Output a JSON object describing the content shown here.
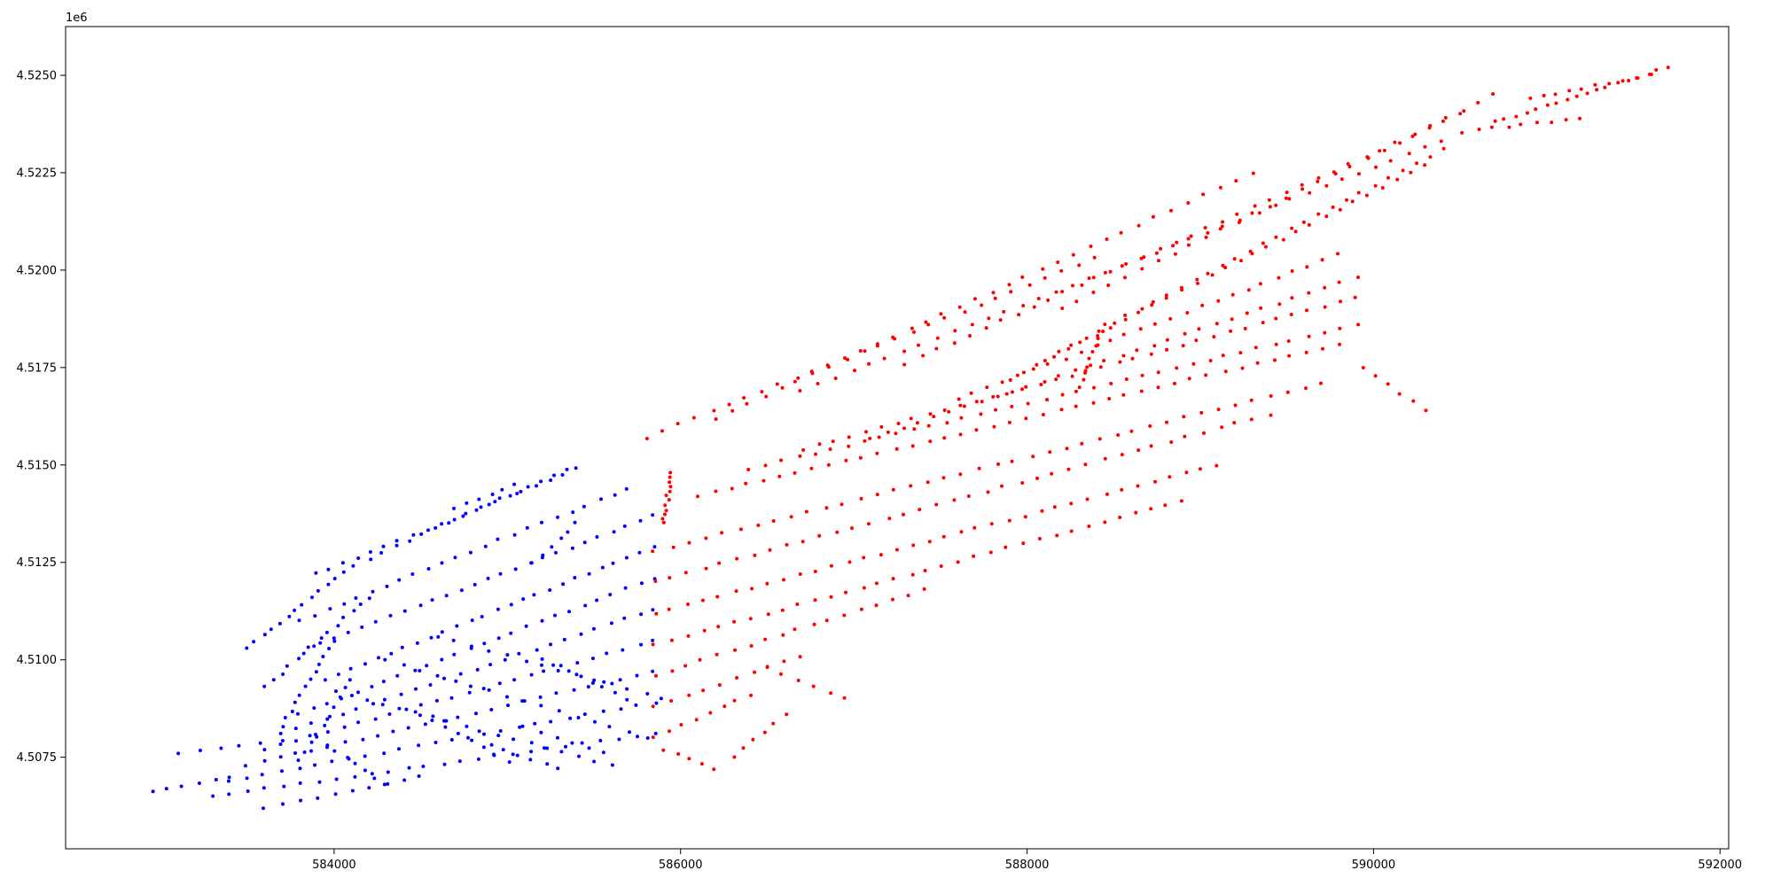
{
  "chart_data": {
    "type": "scatter",
    "title": "",
    "xlabel": "",
    "ylabel": "",
    "y_offset_label": "1e6",
    "xlim": [
      582450,
      592050
    ],
    "ylim": [
      4505150,
      4526250
    ],
    "grid": false,
    "legend": null,
    "x_ticks": [
      {
        "value": 584000,
        "label": "584000"
      },
      {
        "value": 586000,
        "label": "586000"
      },
      {
        "value": 588000,
        "label": "588000"
      },
      {
        "value": 590000,
        "label": "590000"
      },
      {
        "value": 592000,
        "label": "592000"
      }
    ],
    "y_ticks": [
      {
        "value": 4507500,
        "label": "4.5075"
      },
      {
        "value": 4510000,
        "label": "4.5100"
      },
      {
        "value": 4512500,
        "label": "4.5125"
      },
      {
        "value": 4515000,
        "label": "4.5150"
      },
      {
        "value": 4517500,
        "label": "4.5175"
      },
      {
        "value": 4520000,
        "label": "4.5200"
      },
      {
        "value": 4522500,
        "label": "4.5225"
      },
      {
        "value": 4525000,
        "label": "4.5250"
      }
    ],
    "series": [
      {
        "color": "#0000ff",
        "marker_size": 2,
        "lines": [
          {
            "p0": [
              583300,
              4506500
            ],
            "p1": [
              585850,
              4508100
            ],
            "n": 26
          },
          {
            "p0": [
              583400,
              4506900
            ],
            "p1": [
              585850,
              4508900
            ],
            "n": 26
          },
          {
            "p0": [
              583500,
              4507300
            ],
            "p1": [
              585850,
              4509700
            ],
            "n": 26
          },
          {
            "p0": [
              583600,
              4507700
            ],
            "p1": [
              585850,
              4510500
            ],
            "n": 26
          },
          {
            "p0": [
              583700,
              4508100
            ],
            "p1": [
              585850,
              4511300
            ],
            "n": 26
          },
          {
            "p0": [
              583800,
              4508600
            ],
            "p1": [
              585850,
              4512100
            ],
            "n": 26
          },
          {
            "p0": [
              583950,
              4509500
            ],
            "p1": [
              585850,
              4512900
            ],
            "n": 26
          },
          {
            "p0": [
              583850,
              4510300
            ],
            "p1": [
              585850,
              4513700
            ],
            "n": 26
          },
          {
            "p0": [
              583800,
              4511000
            ],
            "p1": [
              585700,
              4514400
            ],
            "n": 24
          },
          {
            "p0": [
              583900,
              4512200
            ],
            "p1": [
              585400,
              4514900
            ],
            "n": 20
          },
          {
            "p0": [
              584200,
              4512600
            ],
            "p1": [
              585350,
              4514900
            ],
            "n": 16
          },
          {
            "p0": [
              584700,
              4513900
            ],
            "p1": [
              585050,
              4514500
            ],
            "n": 6
          },
          {
            "p0": [
              583500,
              4510300
            ],
            "p1": [
              584100,
              4512400
            ],
            "n": 14
          },
          {
            "p0": [
              583600,
              4509300
            ],
            "p1": [
              584200,
              4511600
            ],
            "n": 14
          },
          {
            "p0": [
              583700,
              4508300
            ],
            "p1": [
              584000,
              4510500
            ],
            "n": 12
          },
          {
            "p0": [
              583800,
              4507400
            ],
            "p1": [
              584100,
              4509500
            ],
            "n": 10
          },
          {
            "p0": [
              583100,
              4507600
            ],
            "p1": [
              583700,
              4507900
            ],
            "n": 6
          },
          {
            "p0": [
              582950,
              4506600
            ],
            "p1": [
              583400,
              4507000
            ],
            "n": 6
          },
          {
            "p0": [
              583600,
              4506200
            ],
            "p1": [
              584500,
              4507000
            ],
            "n": 10
          },
          {
            "p0": [
              584000,
              4509200
            ],
            "p1": [
              585600,
              4507300
            ],
            "n": 18
          },
          {
            "p0": [
              584300,
              4510000
            ],
            "p1": [
              585800,
              4508000
            ],
            "n": 16
          },
          {
            "p0": [
              584600,
              4510600
            ],
            "p1": [
              585900,
              4509000
            ],
            "n": 14
          },
          {
            "p0": [
              585150,
              4512500
            ],
            "p1": [
              585400,
              4513500
            ],
            "n": 6
          },
          {
            "p0": [
              584900,
              4507800
            ],
            "p1": [
              585300,
              4507200
            ],
            "n": 6
          },
          {
            "p0": [
              584500,
              4508600
            ],
            "p1": [
              585000,
              4507400
            ],
            "n": 8
          },
          {
            "p0": [
              583900,
              4508000
            ],
            "p1": [
              584300,
              4506800
            ],
            "n": 8
          },
          {
            "p0": [
              585100,
              4508300
            ],
            "p1": [
              585550,
              4507600
            ],
            "n": 6
          },
          {
            "p0": [
              585200,
              4510000
            ],
            "p1": [
              585700,
              4509000
            ],
            "n": 8
          }
        ]
      },
      {
        "color": "#ff0000",
        "marker_size": 2,
        "lines": [
          {
            "p0": [
              585850,
              4508000
            ],
            "p1": [
              586400,
              4509100
            ],
            "n": 8
          },
          {
            "p0": [
              585850,
              4508800
            ],
            "p1": [
              586700,
              4510100
            ],
            "n": 10
          },
          {
            "p0": [
              585850,
              4509600
            ],
            "p1": [
              587400,
              4511800
            ],
            "n": 18
          },
          {
            "p0": [
              585850,
              4510400
            ],
            "p1": [
              588900,
              4514100
            ],
            "n": 34
          },
          {
            "p0": [
              585850,
              4511200
            ],
            "p1": [
              589100,
              4515000
            ],
            "n": 36
          },
          {
            "p0": [
              585850,
              4512000
            ],
            "p1": [
              589400,
              4516300
            ],
            "n": 38
          },
          {
            "p0": [
              585850,
              4512800
            ],
            "p1": [
              589700,
              4517100
            ],
            "n": 40
          },
          {
            "p0": [
              586100,
              4514200
            ],
            "p1": [
              589800,
              4518100
            ],
            "n": 40
          },
          {
            "p0": [
              586400,
              4514900
            ],
            "p1": [
              589900,
              4518600
            ],
            "n": 38
          },
          {
            "p0": [
              586700,
              4515400
            ],
            "p1": [
              589900,
              4519300
            ],
            "n": 36
          },
          {
            "p0": [
              587100,
              4515700
            ],
            "p1": [
              589900,
              4519800
            ],
            "n": 32
          },
          {
            "p0": [
              587600,
              4516700
            ],
            "p1": [
              589800,
              4520400
            ],
            "n": 26
          },
          {
            "p0": [
              587900,
              4517200
            ],
            "p1": [
              590300,
              4522700
            ],
            "n": 30
          },
          {
            "p0": [
              588100,
              4517700
            ],
            "p1": [
              590400,
              4523100
            ],
            "n": 30
          },
          {
            "p0": [
              585800,
              4515700
            ],
            "p1": [
              588400,
              4520300
            ],
            "n": 28
          },
          {
            "p0": [
              586200,
              4516200
            ],
            "p1": [
              589300,
              4522500
            ],
            "n": 34
          },
          {
            "p0": [
              586700,
              4516900
            ],
            "p1": [
              590500,
              4523500
            ],
            "n": 40
          },
          {
            "p0": [
              587300,
              4517600
            ],
            "p1": [
              590500,
              4524000
            ],
            "n": 36
          },
          {
            "p0": [
              588200,
              4519000
            ],
            "p1": [
              590700,
              4524500
            ],
            "n": 28
          },
          {
            "p0": [
              585900,
              4513500
            ],
            "p1": [
              585950,
              4514800
            ],
            "n": 12
          },
          {
            "p0": [
              588300,
              4517000
            ],
            "p1": [
              588450,
              4518600
            ],
            "n": 10
          },
          {
            "p0": [
              586500,
              4509800
            ],
            "p1": [
              586950,
              4509000
            ],
            "n": 6
          },
          {
            "p0": [
              589950,
              4517500
            ],
            "p1": [
              590300,
              4516400
            ],
            "n": 6
          },
          {
            "p0": [
              590700,
              4523800
            ],
            "p1": [
              591700,
              4525200
            ],
            "n": 18
          },
          {
            "p0": [
              590900,
              4524400
            ],
            "p1": [
              591600,
              4525000
            ],
            "n": 10
          },
          {
            "p0": [
              590600,
              4523600
            ],
            "p1": [
              591200,
              4523900
            ],
            "n": 8
          },
          {
            "p0": [
              585900,
              4507700
            ],
            "p1": [
              586200,
              4507200
            ],
            "n": 5
          },
          {
            "p0": [
              586300,
              4507500
            ],
            "p1": [
              586600,
              4508600
            ],
            "n": 6
          }
        ]
      }
    ]
  }
}
